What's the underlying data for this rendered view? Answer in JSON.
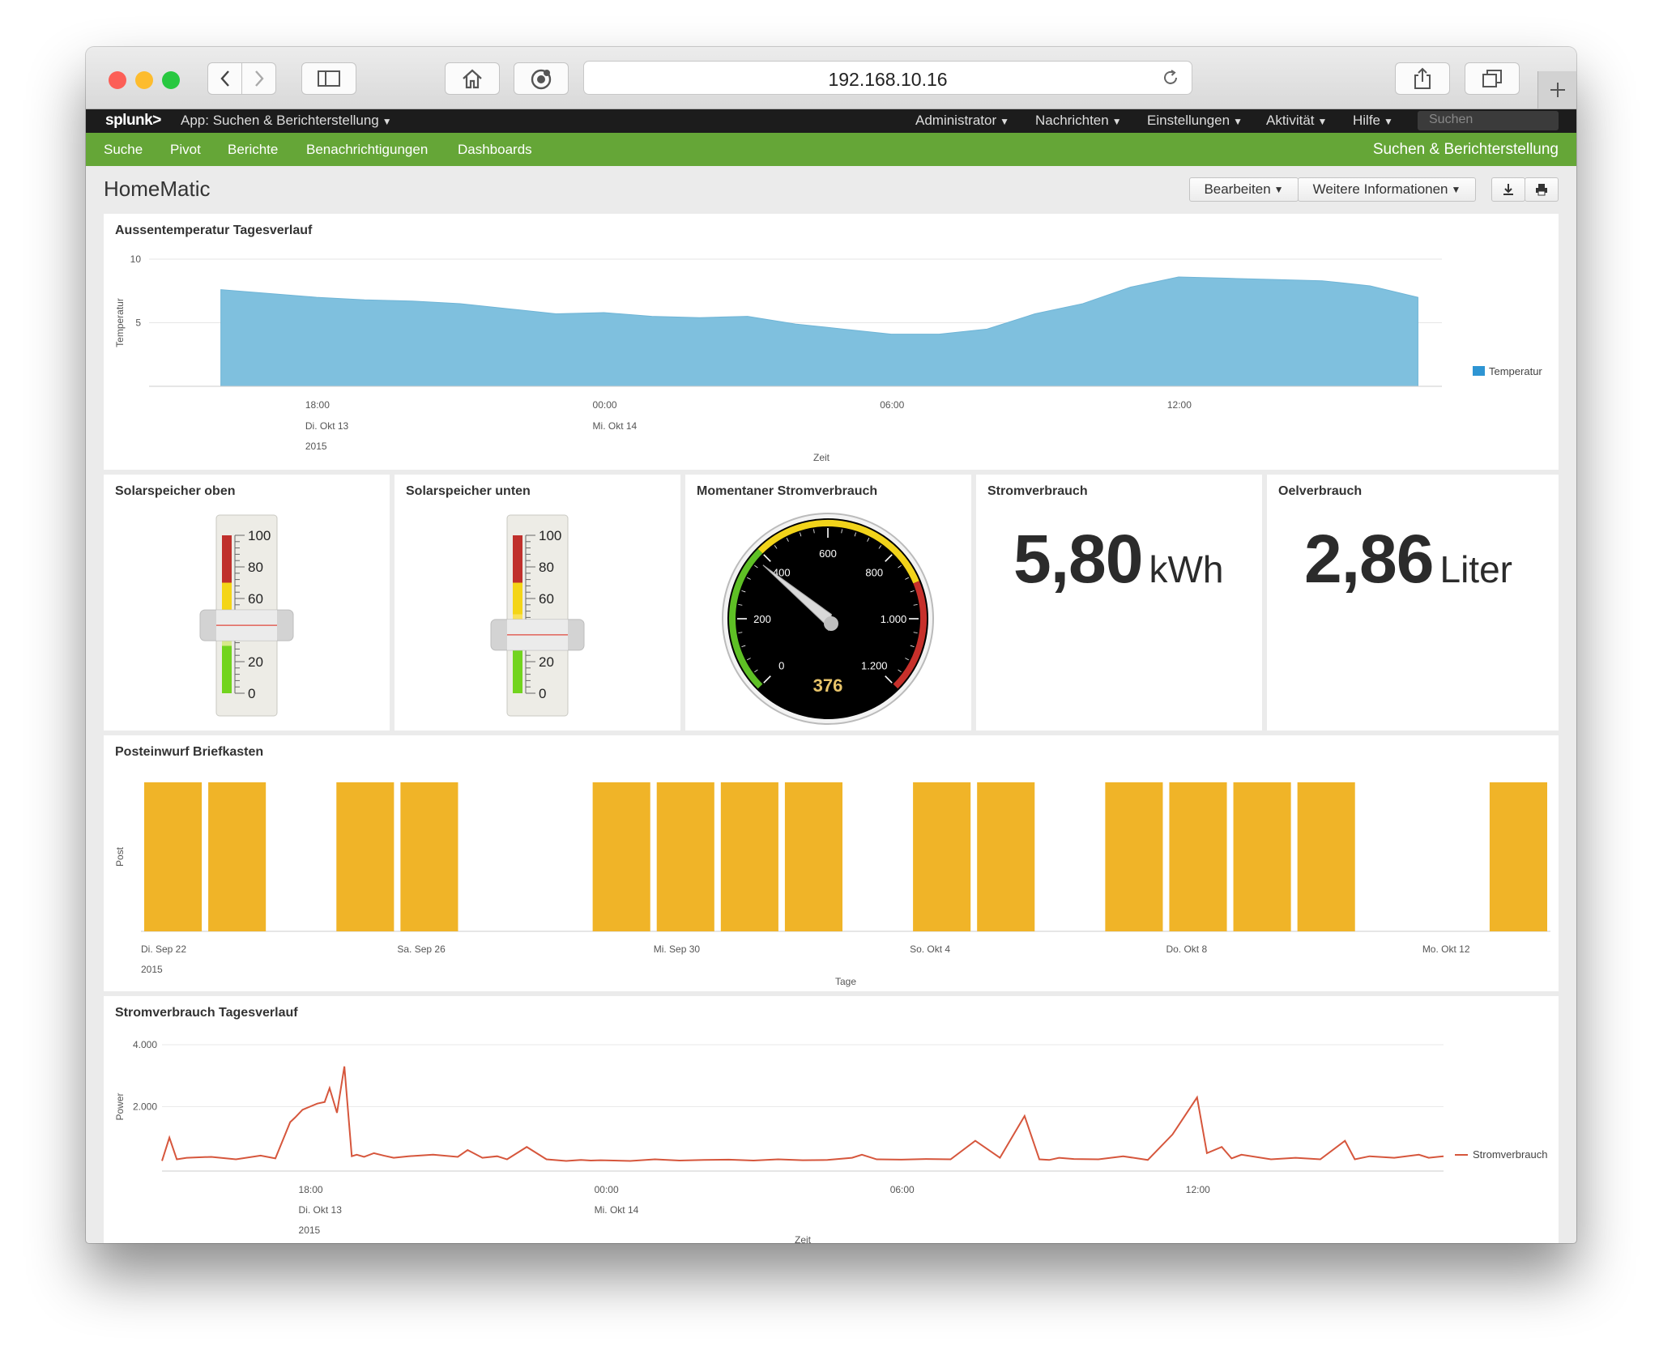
{
  "browser": {
    "url": "192.168.10.16"
  },
  "splunk_bar": {
    "logo": "splunk>",
    "app_label": "App: Suchen & Berichterstellung",
    "menus": [
      "Administrator",
      "Nachrichten",
      "Einstellungen",
      "Aktivität",
      "Hilfe"
    ],
    "search_placeholder": "Suchen"
  },
  "app_bar": {
    "nav": [
      "Suche",
      "Pivot",
      "Berichte",
      "Benachrichtigungen",
      "Dashboards"
    ],
    "app_name": "Suchen & Berichterstellung"
  },
  "dashboard": {
    "title": "HomeMatic",
    "edit_label": "Bearbeiten",
    "more_label": "Weitere Informationen"
  },
  "panels": {
    "temp": {
      "title": "Aussentemperatur Tagesverlauf"
    },
    "solar_top": {
      "title": "Solarspeicher oben",
      "value": 43
    },
    "solar_bottom": {
      "title": "Solarspeicher unten",
      "value": 37
    },
    "power_now": {
      "title": "Momentaner Stromverbrauch",
      "value": "376"
    },
    "energy": {
      "title": "Stromverbrauch",
      "value": "5,80",
      "unit": "kWh"
    },
    "oil": {
      "title": "Oelverbrauch",
      "value": "2,86",
      "unit": "Liter"
    },
    "mail": {
      "title": "Posteinwurf Briefkasten"
    },
    "power_day": {
      "title": "Stromverbrauch Tagesverlauf"
    }
  },
  "chart_data": [
    {
      "id": "temp",
      "type": "area",
      "xlabel": "Zeit",
      "ylabel": "Temperatur",
      "ylim": [
        0,
        10
      ],
      "yticks": [
        "10",
        "5"
      ],
      "xticks": [
        {
          "line1": "18:00",
          "line2": "Di. Okt 13",
          "line3": "2015"
        },
        {
          "line1": "00:00",
          "line2": "Mi. Okt 14",
          "line3": ""
        },
        {
          "line1": "06:00",
          "line2": "",
          "line3": ""
        },
        {
          "line1": "12:00",
          "line2": "",
          "line3": ""
        }
      ],
      "x_hours": [
        16,
        17,
        18,
        19,
        20,
        21,
        22,
        23,
        24,
        25,
        26,
        27,
        28,
        29,
        30,
        31,
        32,
        33,
        34,
        35,
        36,
        37,
        38,
        39,
        40,
        41
      ],
      "series": [
        {
          "name": "Temperatur",
          "color": "#7fc0de",
          "values": [
            7.6,
            7.3,
            7.0,
            6.8,
            6.7,
            6.5,
            6.1,
            5.7,
            5.8,
            5.5,
            5.4,
            5.5,
            4.9,
            4.5,
            4.1,
            4.1,
            4.5,
            5.7,
            6.5,
            7.8,
            8.6,
            8.5,
            8.4,
            8.3,
            7.9,
            7.0
          ]
        }
      ],
      "legend": "right"
    },
    {
      "id": "solar_top",
      "type": "gauge-filler",
      "scale": [
        0,
        20,
        40,
        60,
        80,
        100
      ],
      "value": 43
    },
    {
      "id": "solar_bottom",
      "type": "gauge-filler",
      "scale": [
        0,
        20,
        40,
        60,
        80,
        100
      ],
      "value": 37
    },
    {
      "id": "power_now",
      "type": "radial-gauge",
      "scale": [
        "0",
        "200",
        "400",
        "600",
        "800",
        "1.000",
        "1.200"
      ],
      "range": [
        0,
        1200
      ],
      "value": 376
    },
    {
      "id": "mail",
      "type": "bar",
      "xlabel": "Tage",
      "ylabel": "Post",
      "color": "#f0b428",
      "xticks": [
        {
          "line1": "Di. Sep 22",
          "line2": "2015"
        },
        {
          "line1": "Sa. Sep 26",
          "line2": ""
        },
        {
          "line1": "Mi. Sep 30",
          "line2": ""
        },
        {
          "line1": "So. Okt 4",
          "line2": ""
        },
        {
          "line1": "Do. Okt 8",
          "line2": ""
        },
        {
          "line1": "Mo. Okt 12",
          "line2": ""
        }
      ],
      "categories": [
        "Sep 22",
        "Sep 23",
        "Sep 24",
        "Sep 25",
        "Sep 26",
        "Sep 27",
        "Sep 28",
        "Sep 29",
        "Sep 30",
        "Okt 1",
        "Okt 2",
        "Okt 3",
        "Okt 4",
        "Okt 5",
        "Okt 6",
        "Okt 7",
        "Okt 8",
        "Okt 9",
        "Okt 10",
        "Okt 11",
        "Okt 12",
        "Okt 13"
      ],
      "values": [
        1,
        1,
        0,
        1,
        1,
        0,
        0,
        1,
        1,
        1,
        1,
        0,
        1,
        1,
        0,
        1,
        1,
        1,
        1,
        0,
        0,
        1
      ]
    },
    {
      "id": "power_day",
      "type": "line",
      "xlabel": "Zeit",
      "ylabel": "Power",
      "ylim": [
        0,
        4000
      ],
      "yticks": [
        "4.000",
        "2.000"
      ],
      "xticks": [
        {
          "line1": "18:00",
          "line2": "Di. Okt 13",
          "line3": "2015"
        },
        {
          "line1": "00:00",
          "line2": "Mi. Okt 14",
          "line3": ""
        },
        {
          "line1": "06:00",
          "line2": "",
          "line3": ""
        },
        {
          "line1": "12:00",
          "line2": "",
          "line3": ""
        }
      ],
      "x_hours": [
        15.0,
        15.15,
        15.3,
        15.5,
        16,
        16.5,
        17,
        17.3,
        17.6,
        17.7,
        17.85,
        18.0,
        18.15,
        18.3,
        18.4,
        18.55,
        18.7,
        18.85,
        18.95,
        19.1,
        19.3,
        19.5,
        19.7,
        20.0,
        20.5,
        21,
        21.2,
        21.5,
        21.8,
        22,
        22.4,
        22.8,
        23.2,
        23.5,
        23.7,
        23.9,
        24.5,
        25,
        25.5,
        26,
        26.5,
        27,
        27.5,
        28,
        28.5,
        29,
        29.2,
        29.5,
        30,
        30.5,
        31,
        31.5,
        32,
        32.5,
        32.8,
        33.0,
        33.2,
        33.5,
        34,
        34.5,
        35,
        35.5,
        36,
        36.2,
        36.5,
        36.7,
        36.9,
        37.5,
        38,
        38.5,
        39,
        39.2,
        39.5,
        40,
        40.5,
        40.7,
        41
      ],
      "series": [
        {
          "name": "Stromverbrauch",
          "color": "#d6563c",
          "values": [
            250,
            1000,
            300,
            350,
            380,
            300,
            420,
            330,
            1500,
            1650,
            1900,
            2000,
            2100,
            2150,
            2600,
            1800,
            3300,
            400,
            450,
            380,
            500,
            420,
            350,
            400,
            450,
            380,
            600,
            350,
            400,
            300,
            700,
            300,
            250,
            280,
            260,
            270,
            250,
            300,
            260,
            280,
            290,
            260,
            300,
            270,
            280,
            350,
            450,
            300,
            290,
            310,
            300,
            900,
            350,
            1700,
            300,
            280,
            350,
            310,
            300,
            400,
            280,
            1100,
            2300,
            500,
            700,
            330,
            450,
            300,
            350,
            300,
            900,
            300,
            400,
            350,
            450,
            350,
            400
          ]
        }
      ],
      "legend": "right"
    }
  ]
}
